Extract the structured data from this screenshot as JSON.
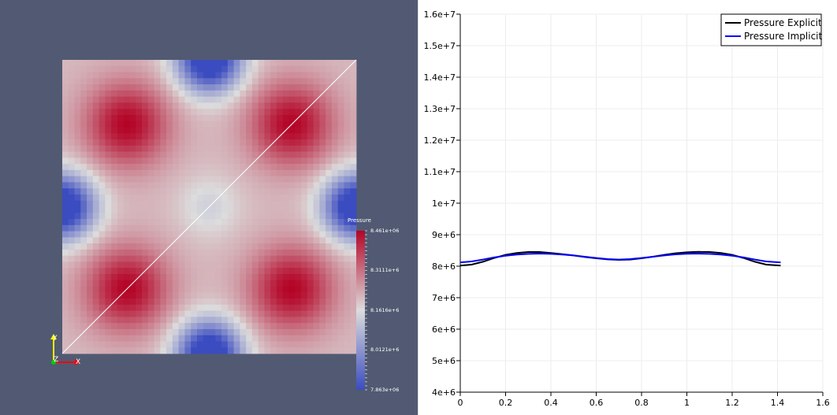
{
  "render_view": {
    "colorbar": {
      "title": "Pressure",
      "tick_labels": [
        "8.461e+06",
        "8.3111e+6",
        "8.1616e+6",
        "8.0121e+6",
        "7.863e+06"
      ],
      "tick_values": [
        8461000,
        8311100,
        8161600,
        8012100,
        7863000
      ],
      "range": [
        7863000,
        8461000
      ],
      "colors": {
        "low": "#3b4cc0",
        "mid": "#dcdcdc",
        "high": "#b40426"
      }
    },
    "axes": {
      "x_label": "X",
      "y_label": "Y",
      "z_label": "Z",
      "colors": {
        "x": "#ff0000",
        "y": "#ffff00",
        "z": "#00ff00"
      }
    },
    "field": {
      "grid": 48,
      "description_free": true,
      "blue_spots": [
        [
          0.5,
          0.0
        ],
        [
          0.5,
          1.0
        ],
        [
          0.0,
          0.5
        ],
        [
          1.0,
          0.5
        ]
      ],
      "red_spots": [
        [
          0.22,
          0.22
        ],
        [
          0.78,
          0.22
        ],
        [
          0.22,
          0.78
        ],
        [
          0.78,
          0.78
        ]
      ]
    },
    "background_color": "#515a72"
  },
  "chart_data": {
    "type": "line",
    "xlim": [
      0,
      1.6
    ],
    "ylim": [
      4000000,
      16000000
    ],
    "x_tick_labels": [
      "0",
      "0.2",
      "0.4",
      "0.6",
      "0.8",
      "1",
      "1.2",
      "1.4",
      "1.6"
    ],
    "x_ticks": [
      0,
      0.2,
      0.4,
      0.6,
      0.8,
      1.0,
      1.2,
      1.4,
      1.6
    ],
    "y_tick_labels": [
      "4e+6",
      "5e+6",
      "6e+6",
      "7e+6",
      "8e+6",
      "9e+6",
      "1e+7",
      "1.1e+7",
      "1.2e+7",
      "1.3e+7",
      "1.4e+7",
      "1.5e+7",
      "1.6e+7"
    ],
    "y_ticks": [
      4000000,
      5000000,
      6000000,
      7000000,
      8000000,
      9000000,
      10000000,
      11000000,
      12000000,
      13000000,
      14000000,
      15000000,
      16000000
    ],
    "grid": true,
    "legend_position": "top-right",
    "series": [
      {
        "name": "Pressure Explicit",
        "color": "#000000",
        "x": [
          0,
          0.05,
          0.1,
          0.15,
          0.2,
          0.25,
          0.3,
          0.35,
          0.4,
          0.45,
          0.5,
          0.55,
          0.6,
          0.65,
          0.7,
          0.75,
          0.8,
          0.85,
          0.9,
          0.95,
          1.0,
          1.05,
          1.1,
          1.15,
          1.2,
          1.25,
          1.3,
          1.35,
          1.414
        ],
        "y": [
          8020000,
          8050000,
          8140000,
          8260000,
          8360000,
          8420000,
          8450000,
          8450000,
          8420000,
          8380000,
          8340000,
          8290000,
          8250000,
          8215000,
          8200000,
          8210000,
          8250000,
          8300000,
          8360000,
          8410000,
          8440000,
          8455000,
          8450000,
          8420000,
          8360000,
          8260000,
          8140000,
          8050000,
          8020000
        ]
      },
      {
        "name": "Pressure Implicit",
        "color": "#0000ff",
        "x": [
          0,
          0.05,
          0.1,
          0.15,
          0.2,
          0.25,
          0.3,
          0.35,
          0.4,
          0.45,
          0.5,
          0.55,
          0.6,
          0.65,
          0.7,
          0.75,
          0.8,
          0.85,
          0.9,
          0.95,
          1.0,
          1.05,
          1.1,
          1.15,
          1.2,
          1.25,
          1.3,
          1.35,
          1.414
        ],
        "y": [
          8120000,
          8150000,
          8210000,
          8280000,
          8330000,
          8370000,
          8390000,
          8400000,
          8390000,
          8370000,
          8340000,
          8300000,
          8260000,
          8225000,
          8210000,
          8225000,
          8260000,
          8300000,
          8340000,
          8375000,
          8395000,
          8400000,
          8390000,
          8370000,
          8330000,
          8280000,
          8210000,
          8150000,
          8120000
        ]
      }
    ]
  }
}
